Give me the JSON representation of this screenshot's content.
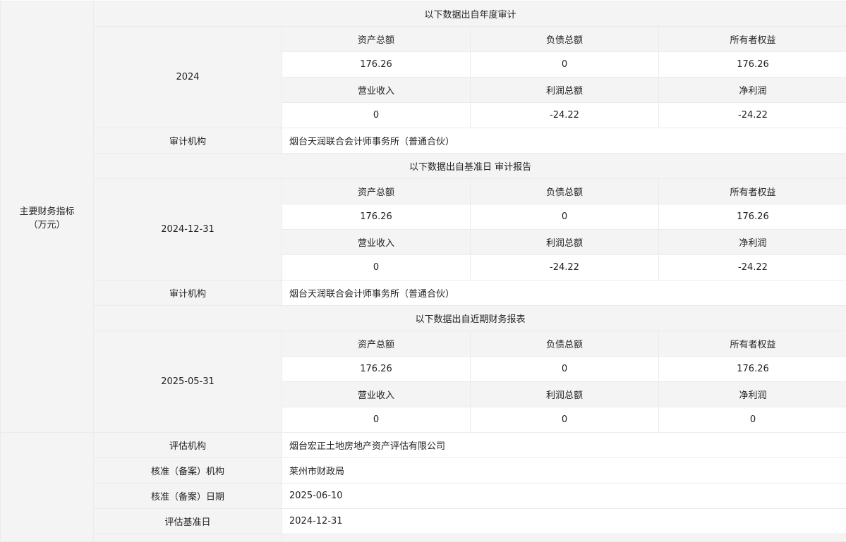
{
  "main_label": {
    "line1": "主要财务指标",
    "line2": "（万元）"
  },
  "headers": {
    "assets": "资产总额",
    "liabilities": "负债总额",
    "equity": "所有者权益",
    "revenue": "营业收入",
    "profit": "利润总额",
    "net_profit": "净利润",
    "audit_org_label": "审计机构"
  },
  "sections": [
    {
      "title": "以下数据出自年度审计",
      "period": "2024",
      "assets": "176.26",
      "liabilities": "0",
      "equity": "176.26",
      "revenue": "0",
      "profit": "-24.22",
      "net_profit": "-24.22",
      "audit_org": "烟台天润联合会计师事务所（普通合伙）"
    },
    {
      "title": "以下数据出自基准日 审计报告",
      "period": "2024-12-31",
      "assets": "176.26",
      "liabilities": "0",
      "equity": "176.26",
      "revenue": "0",
      "profit": "-24.22",
      "net_profit": "-24.22",
      "audit_org": "烟台天润联合会计师事务所（普通合伙）"
    },
    {
      "title": "以下数据出自近期财务报表",
      "period": "2025-05-31",
      "assets": "176.26",
      "liabilities": "0",
      "equity": "176.26",
      "revenue": "0",
      "profit": "0",
      "net_profit": "0"
    }
  ],
  "valuation": [
    {
      "label": "评估机构",
      "value": "烟台宏正土地房地产资产评估有限公司"
    },
    {
      "label": "核准（备案）机构",
      "value": "莱州市财政局"
    },
    {
      "label": "核准（备案）日期",
      "value": "2025-06-10"
    },
    {
      "label": "评估基准日",
      "value": "2024-12-31"
    }
  ]
}
